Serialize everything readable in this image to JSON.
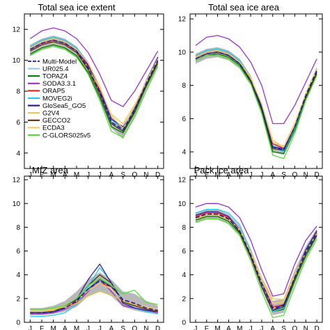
{
  "figure_titles": [
    "Total sea ice extent",
    "Total sea ice area",
    "MIZ area",
    "Pack ice area"
  ],
  "chart_data": [
    {
      "type": "line",
      "title": "Total sea ice extent",
      "x": [
        "J",
        "F",
        "M",
        "A",
        "M",
        "J",
        "J",
        "A",
        "S",
        "O",
        "N",
        "D"
      ],
      "ylim": [
        3,
        13
      ],
      "yticks": [
        4,
        6,
        8,
        10,
        12
      ],
      "grid": false,
      "legend": "left",
      "band": {
        "lower": [
          10.3,
          10.7,
          10.9,
          10.7,
          10.2,
          9.1,
          7.5,
          5.6,
          4.9,
          6.3,
          8.1,
          9.6
        ],
        "upper": [
          11.0,
          11.4,
          11.6,
          11.4,
          10.9,
          9.9,
          8.4,
          6.4,
          5.7,
          7.0,
          8.8,
          10.3
        ]
      },
      "series": [
        {
          "name": "Multi-Model",
          "color": "#1a1aa8",
          "dash": true,
          "values": [
            10.7,
            11.1,
            11.3,
            11.1,
            10.6,
            9.5,
            7.9,
            6.0,
            5.5,
            6.8,
            8.5,
            10.0
          ]
        },
        {
          "name": "UR025.4",
          "color": "#99ccee",
          "values": [
            10.7,
            11.1,
            11.3,
            11.1,
            10.6,
            9.6,
            8.0,
            6.1,
            5.5,
            6.9,
            8.6,
            10.1
          ]
        },
        {
          "name": "TOPAZ4",
          "color": "#007a00",
          "values": [
            10.4,
            10.8,
            11.0,
            10.8,
            10.3,
            9.2,
            7.6,
            5.7,
            5.3,
            6.6,
            8.3,
            9.8
          ]
        },
        {
          "name": "SODA3.3.1",
          "color": "#9933cc",
          "values": [
            11.4,
            11.9,
            12.1,
            11.9,
            11.4,
            10.5,
            9.1,
            7.4,
            7.0,
            8.0,
            9.3,
            10.6
          ]
        },
        {
          "name": "ORAP5",
          "color": "#ee2222",
          "values": [
            10.7,
            11.1,
            11.3,
            11.1,
            10.6,
            9.6,
            8.0,
            6.2,
            5.6,
            7.0,
            8.6,
            10.1
          ]
        },
        {
          "name": "MOVEG2i",
          "color": "#22ccee",
          "values": [
            10.9,
            11.3,
            11.5,
            11.3,
            10.8,
            9.8,
            8.2,
            6.2,
            5.5,
            6.8,
            8.5,
            10.2
          ]
        },
        {
          "name": "GloSea5_GO5",
          "color": "#3a1aa0",
          "values": [
            10.8,
            11.2,
            11.4,
            11.2,
            10.7,
            9.7,
            8.1,
            6.2,
            5.7,
            6.9,
            8.6,
            10.2
          ]
        },
        {
          "name": "G2V4",
          "color": "#e8c84a",
          "values": [
            10.6,
            11.0,
            11.2,
            11.0,
            10.5,
            9.5,
            8.2,
            6.5,
            5.9,
            7.1,
            8.6,
            10.0
          ]
        },
        {
          "name": "GECCO2",
          "color": "#5a2e0e",
          "values": [
            10.6,
            11.0,
            11.2,
            11.0,
            10.5,
            9.4,
            7.8,
            5.9,
            5.4,
            6.7,
            8.4,
            9.9
          ]
        },
        {
          "name": "ECDA3",
          "color": "#ffcc66",
          "values": [
            10.8,
            11.2,
            11.4,
            11.2,
            10.7,
            9.8,
            8.3,
            6.4,
            5.6,
            7.0,
            8.6,
            10.1
          ]
        },
        {
          "name": "C-GLORS025v5",
          "color": "#55dd33",
          "values": [
            10.3,
            10.7,
            10.9,
            10.7,
            10.2,
            9.1,
            7.4,
            5.4,
            5.0,
            6.3,
            8.0,
            9.6
          ]
        }
      ]
    },
    {
      "type": "line",
      "title": "Total sea ice area",
      "x": [
        "J",
        "F",
        "M",
        "A",
        "M",
        "J",
        "J",
        "A",
        "S",
        "O",
        "N",
        "D"
      ],
      "ylim": [
        3,
        12.3
      ],
      "yticks": [
        4,
        6,
        8,
        10,
        12
      ],
      "grid": false,
      "band": {
        "lower": [
          9.3,
          9.6,
          9.7,
          9.5,
          9.0,
          8.0,
          6.3,
          4.0,
          3.8,
          5.2,
          7.1,
          8.6
        ],
        "upper": [
          9.9,
          10.2,
          10.3,
          10.1,
          9.6,
          8.6,
          6.9,
          4.5,
          4.4,
          5.8,
          7.6,
          9.1
        ]
      },
      "series": [
        {
          "name": "Multi-Model",
          "color": "#1a1aa8",
          "dash": true,
          "values": [
            9.6,
            9.9,
            10.0,
            9.8,
            9.3,
            8.3,
            6.6,
            4.3,
            4.1,
            5.5,
            7.4,
            8.9
          ]
        },
        {
          "name": "UR025.4",
          "color": "#99ccee",
          "values": [
            9.7,
            10.0,
            10.1,
            9.9,
            9.4,
            8.4,
            6.7,
            4.4,
            4.2,
            5.6,
            7.4,
            9.0
          ]
        },
        {
          "name": "TOPAZ4",
          "color": "#007a00",
          "values": [
            9.5,
            9.8,
            9.9,
            9.7,
            9.2,
            8.2,
            6.5,
            4.0,
            3.9,
            5.3,
            7.2,
            8.7
          ]
        },
        {
          "name": "SODA3.3.1",
          "color": "#9933cc",
          "values": [
            10.4,
            10.9,
            11.0,
            10.8,
            10.3,
            9.4,
            8.0,
            5.7,
            5.7,
            6.8,
            8.2,
            9.6
          ]
        },
        {
          "name": "ORAP5",
          "color": "#ee2222",
          "values": [
            9.7,
            10.0,
            10.1,
            9.9,
            9.4,
            8.4,
            6.8,
            4.5,
            4.2,
            5.6,
            7.4,
            9.0
          ]
        },
        {
          "name": "MOVEG2i",
          "color": "#22ccee",
          "values": [
            9.8,
            10.1,
            10.2,
            10.0,
            9.5,
            8.5,
            6.8,
            4.3,
            4.0,
            5.4,
            7.3,
            9.0
          ]
        },
        {
          "name": "GloSea5_GO5",
          "color": "#3a1aa0",
          "values": [
            9.7,
            10.0,
            10.1,
            9.9,
            9.4,
            8.4,
            6.7,
            4.3,
            4.2,
            5.6,
            7.5,
            9.0
          ]
        },
        {
          "name": "G2V4",
          "color": "#e8c84a",
          "values": [
            9.6,
            9.9,
            10.0,
            9.8,
            9.3,
            8.4,
            6.9,
            4.7,
            4.3,
            5.6,
            7.4,
            8.9
          ]
        },
        {
          "name": "GECCO2",
          "color": "#5a2e0e",
          "values": [
            9.6,
            9.9,
            10.0,
            9.8,
            9.3,
            8.3,
            6.6,
            4.2,
            4.1,
            5.5,
            7.3,
            8.8
          ]
        },
        {
          "name": "ECDA3",
          "color": "#ffcc66",
          "values": [
            9.7,
            10.0,
            10.1,
            9.9,
            9.4,
            8.5,
            6.9,
            4.6,
            4.3,
            5.7,
            7.5,
            9.0
          ]
        },
        {
          "name": "C-GLORS025v5",
          "color": "#55dd33",
          "values": [
            9.5,
            9.8,
            9.8,
            9.6,
            9.1,
            8.1,
            6.3,
            3.8,
            3.6,
            5.1,
            7.1,
            8.6
          ]
        }
      ]
    },
    {
      "type": "line",
      "title": "MIZ area",
      "x": [
        "J",
        "F",
        "M",
        "A",
        "M",
        "J",
        "J",
        "A",
        "S",
        "O",
        "N",
        "D"
      ],
      "ylim": [
        0,
        12.3
      ],
      "yticks": [
        0,
        2,
        4,
        6,
        8,
        10,
        12
      ],
      "grid": false,
      "band": {
        "lower": [
          0.6,
          0.6,
          0.7,
          0.9,
          1.3,
          2.2,
          2.6,
          2.2,
          1.3,
          1.0,
          0.8,
          0.7
        ],
        "upper": [
          1.2,
          1.2,
          1.4,
          1.8,
          2.6,
          3.6,
          4.2,
          3.6,
          2.6,
          2.4,
          1.8,
          1.4
        ]
      },
      "series": [
        {
          "name": "Multi-Model",
          "color": "#1a1aa8",
          "dash": true,
          "values": [
            0.8,
            0.8,
            0.9,
            1.2,
            1.8,
            2.8,
            3.5,
            3.0,
            1.9,
            1.6,
            1.2,
            1.0
          ]
        },
        {
          "name": "UR025.4",
          "color": "#99ccee",
          "values": [
            0.8,
            0.8,
            0.9,
            1.2,
            1.8,
            2.9,
            3.6,
            3.1,
            1.9,
            1.6,
            1.2,
            1.0
          ]
        },
        {
          "name": "TOPAZ4",
          "color": "#007a00",
          "values": [
            0.9,
            0.9,
            1.0,
            1.3,
            1.9,
            2.8,
            3.6,
            3.0,
            1.9,
            1.6,
            1.2,
            1.0
          ]
        },
        {
          "name": "SODA3.3.1",
          "color": "#9933cc",
          "values": [
            0.7,
            0.7,
            0.8,
            1.1,
            1.6,
            2.6,
            3.6,
            2.6,
            1.4,
            1.2,
            1.0,
            0.8
          ]
        },
        {
          "name": "ORAP5",
          "color": "#ee2222",
          "values": [
            0.8,
            0.8,
            0.9,
            1.2,
            1.7,
            2.7,
            3.3,
            3.0,
            1.9,
            1.5,
            1.2,
            1.0
          ]
        },
        {
          "name": "MOVEG2i",
          "color": "#22ccee",
          "values": [
            0.5,
            0.5,
            0.6,
            0.8,
            1.5,
            3.0,
            4.6,
            3.4,
            1.8,
            1.2,
            0.9,
            0.7
          ]
        },
        {
          "name": "GloSea5_GO5",
          "color": "#3a1aa0",
          "values": [
            0.8,
            0.8,
            0.9,
            1.2,
            1.9,
            3.6,
            4.9,
            3.3,
            1.6,
            1.2,
            1.0,
            0.9
          ]
        },
        {
          "name": "G2V4",
          "color": "#e8c84a",
          "values": [
            0.9,
            0.9,
            1.0,
            1.2,
            1.6,
            2.2,
            2.6,
            2.3,
            1.8,
            1.5,
            1.2,
            1.0
          ]
        },
        {
          "name": "GECCO2",
          "color": "#5a2e0e",
          "values": [
            0.8,
            0.8,
            0.9,
            1.3,
            2.0,
            3.1,
            4.0,
            3.3,
            1.7,
            1.4,
            1.1,
            0.9
          ]
        },
        {
          "name": "ECDA3",
          "color": "#ffcc66",
          "values": [
            1.0,
            1.0,
            1.1,
            1.3,
            1.8,
            2.7,
            3.3,
            2.8,
            1.9,
            1.6,
            1.3,
            1.1
          ]
        },
        {
          "name": "C-GLORS025v5",
          "color": "#55dd33",
          "values": [
            1.1,
            1.1,
            1.2,
            1.4,
            2.0,
            3.1,
            3.7,
            3.1,
            2.4,
            2.7,
            1.7,
            1.5
          ]
        }
      ]
    },
    {
      "type": "line",
      "title": "Pack ice area",
      "x": [
        "J",
        "F",
        "M",
        "A",
        "M",
        "J",
        "J",
        "A",
        "S",
        "O",
        "N",
        "D"
      ],
      "ylim": [
        0,
        12.3
      ],
      "yticks": [
        0,
        2,
        4,
        6,
        8,
        10,
        12
      ],
      "grid": false,
      "band": {
        "lower": [
          8.4,
          8.7,
          8.7,
          8.3,
          7.3,
          5.3,
          2.8,
          0.6,
          0.8,
          3.2,
          5.4,
          7.1
        ],
        "upper": [
          9.2,
          9.5,
          9.5,
          9.1,
          8.1,
          6.2,
          3.8,
          1.8,
          2.0,
          4.4,
          6.4,
          7.9
        ]
      },
      "series": [
        {
          "name": "Multi-Model",
          "color": "#1a1aa8",
          "dash": true,
          "values": [
            8.8,
            9.1,
            9.1,
            8.7,
            7.7,
            5.7,
            3.3,
            1.2,
            1.4,
            3.8,
            5.9,
            7.5
          ]
        },
        {
          "name": "UR025.4",
          "color": "#99ccee",
          "values": [
            8.9,
            9.2,
            9.2,
            8.8,
            7.8,
            5.8,
            3.4,
            1.3,
            1.5,
            3.9,
            6.0,
            7.6
          ]
        },
        {
          "name": "TOPAZ4",
          "color": "#007a00",
          "values": [
            8.6,
            8.9,
            8.9,
            8.5,
            7.5,
            5.5,
            3.0,
            0.9,
            1.1,
            3.5,
            5.6,
            7.3
          ]
        },
        {
          "name": "SODA3.3.1",
          "color": "#9933cc",
          "values": [
            9.7,
            10.0,
            10.0,
            9.7,
            8.8,
            6.9,
            4.4,
            2.2,
            2.4,
            4.9,
            6.9,
            8.1
          ]
        },
        {
          "name": "ORAP5",
          "color": "#ee2222",
          "values": [
            8.9,
            9.2,
            9.2,
            8.8,
            7.8,
            5.8,
            3.4,
            1.3,
            1.5,
            3.9,
            6.0,
            7.6
          ]
        },
        {
          "name": "MOVEG2i",
          "color": "#22ccee",
          "values": [
            9.2,
            9.5,
            9.5,
            9.2,
            8.2,
            6.0,
            3.3,
            0.9,
            1.2,
            3.8,
            6.0,
            7.7
          ]
        },
        {
          "name": "GloSea5_GO5",
          "color": "#3a1aa0",
          "values": [
            9.0,
            9.3,
            9.3,
            8.9,
            7.8,
            5.6,
            3.0,
            1.0,
            1.5,
            3.9,
            6.1,
            7.7
          ]
        },
        {
          "name": "G2V4",
          "color": "#e8c84a",
          "values": [
            8.7,
            9.0,
            9.0,
            8.6,
            7.7,
            5.9,
            3.7,
            2.0,
            1.9,
            4.0,
            5.9,
            7.4
          ]
        },
        {
          "name": "GECCO2",
          "color": "#5a2e0e",
          "values": [
            8.8,
            9.1,
            9.1,
            8.7,
            7.6,
            5.5,
            3.0,
            1.0,
            1.3,
            3.7,
            5.8,
            7.4
          ]
        },
        {
          "name": "ECDA3",
          "color": "#ffcc66",
          "values": [
            8.8,
            9.1,
            9.1,
            8.7,
            7.8,
            5.8,
            3.5,
            1.6,
            1.7,
            3.9,
            5.9,
            7.5
          ]
        },
        {
          "name": "C-GLORS025v5",
          "color": "#55dd33",
          "values": [
            8.4,
            8.7,
            8.7,
            8.3,
            7.3,
            5.2,
            2.6,
            0.4,
            0.6,
            3.0,
            5.3,
            7.0
          ]
        }
      ]
    }
  ]
}
